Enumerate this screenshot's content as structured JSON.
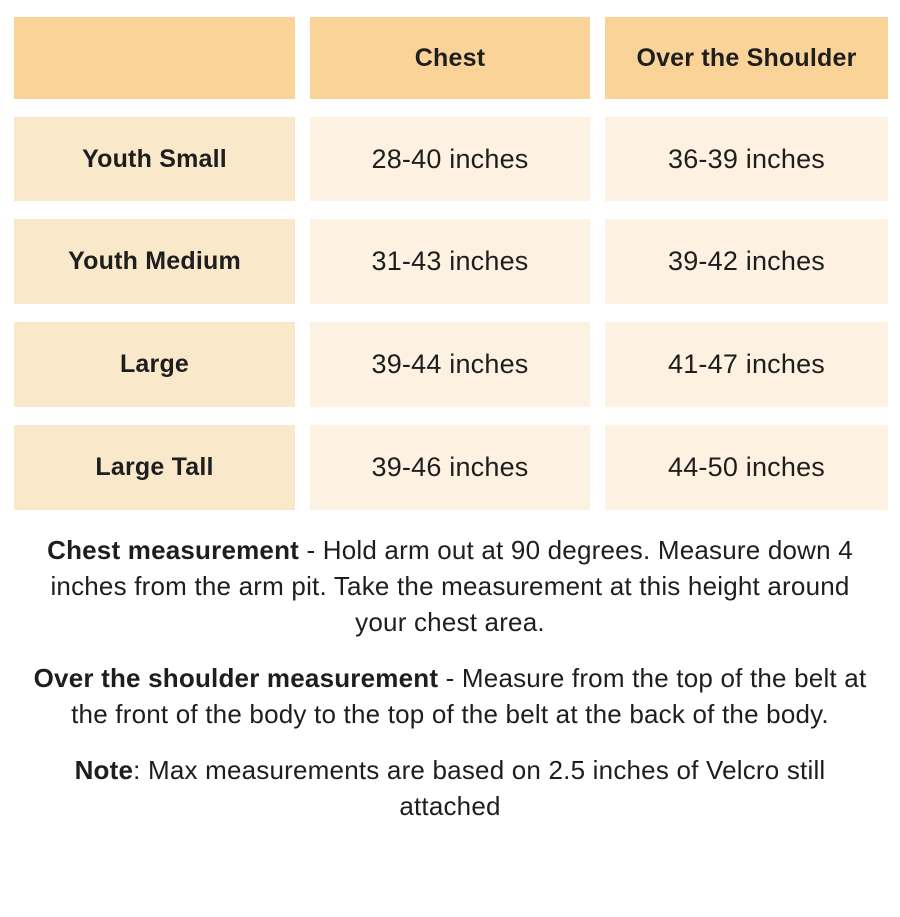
{
  "table": {
    "columns": [
      "",
      "Chest",
      "Over the Shoulder"
    ],
    "rows": [
      {
        "label": "Youth Small",
        "chest": "28-40 inches",
        "over_shoulder": "36-39 inches"
      },
      {
        "label": "Youth Medium",
        "chest": "31-43 inches",
        "over_shoulder": "39-42 inches"
      },
      {
        "label": "Large",
        "chest": "39-44 inches",
        "over_shoulder": "41-47 inches"
      },
      {
        "label": "Large Tall",
        "chest": "39-46 inches",
        "over_shoulder": "44-50 inches"
      }
    ]
  },
  "notes": [
    {
      "bold": "Chest measurement",
      "rest": " - Hold arm out at 90 degrees. Measure down 4 inches from the arm pit. Take the measurement at this height around your chest area."
    },
    {
      "bold": "Over the shoulder measurement",
      "rest": " - Measure from the top of the belt at the front of the body to the top of the belt at the back of the body."
    },
    {
      "bold": "Note",
      "rest": ": Max measurements are based on 2.5 inches of Velcro still attached"
    }
  ],
  "colors": {
    "header_cell_bg": "#FAD398",
    "row_label_bg": "#FAE8CB",
    "value_cell_bg": "#FDF1E1",
    "text": "#1E1E1E",
    "page_bg": "#FFFFFF"
  }
}
